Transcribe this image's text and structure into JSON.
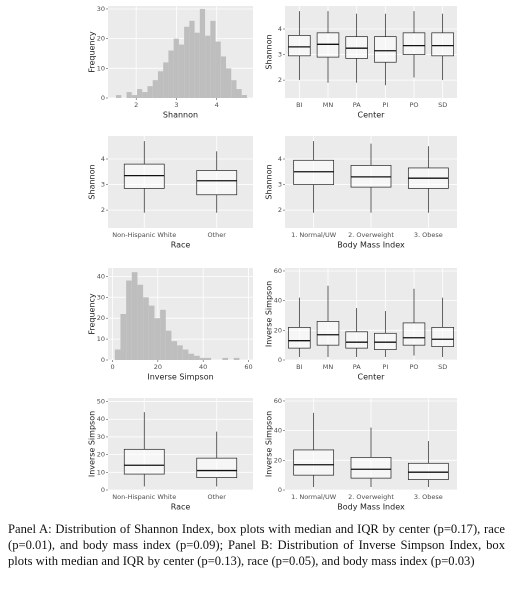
{
  "chart_data": [
    {
      "type": "histogram",
      "x_label": "Shannon",
      "y_label": "Frequency",
      "bins": [
        1.5,
        1.63,
        1.76,
        1.89,
        2.02,
        2.15,
        2.28,
        2.41,
        2.54,
        2.67,
        2.8,
        2.93,
        3.06,
        3.19,
        3.32,
        3.45,
        3.58,
        3.71,
        3.84,
        3.97,
        4.1,
        4.23,
        4.36,
        4.49,
        4.62,
        4.75
      ],
      "values": [
        1,
        0,
        2,
        1,
        3,
        2,
        4,
        6,
        9,
        12,
        16,
        20,
        18,
        24,
        26,
        22,
        30,
        21,
        26,
        19,
        14,
        10,
        6,
        3,
        1
      ],
      "color": "#bebebe",
      "xlim": [
        1.3,
        4.9
      ],
      "xticks": [
        2,
        3,
        4
      ],
      "ylim": [
        0,
        31
      ],
      "yticks": [
        0,
        10,
        20,
        30
      ],
      "grid": true
    },
    {
      "type": "boxplot",
      "x_label": "Center",
      "y_label": "Shannon",
      "categories": [
        "BI",
        "MN",
        "PA",
        "PI",
        "PO",
        "SD"
      ],
      "boxes": [
        {
          "low": 2.0,
          "q1": 2.95,
          "median": 3.3,
          "q3": 3.75,
          "high": 4.7
        },
        {
          "low": 1.9,
          "q1": 2.9,
          "median": 3.4,
          "q3": 3.85,
          "high": 4.7
        },
        {
          "low": 1.9,
          "q1": 2.85,
          "median": 3.25,
          "q3": 3.7,
          "high": 4.6
        },
        {
          "low": 1.8,
          "q1": 2.7,
          "median": 3.15,
          "q3": 3.7,
          "high": 4.6
        },
        {
          "low": 2.1,
          "q1": 3.0,
          "median": 3.35,
          "q3": 3.85,
          "high": 4.7
        },
        {
          "low": 2.0,
          "q1": 2.95,
          "median": 3.35,
          "q3": 3.85,
          "high": 4.6
        }
      ],
      "ylim": [
        1.3,
        4.9
      ],
      "yticks": [
        2,
        3,
        4
      ],
      "grid": true
    },
    {
      "type": "boxplot",
      "x_label": "Race",
      "y_label": "Shannon",
      "categories": [
        "Non-Hispanic White",
        "Other"
      ],
      "boxes": [
        {
          "low": 1.9,
          "q1": 2.85,
          "median": 3.35,
          "q3": 3.8,
          "high": 4.7
        },
        {
          "low": 1.9,
          "q1": 2.6,
          "median": 3.15,
          "q3": 3.55,
          "high": 4.3
        }
      ],
      "ylim": [
        1.3,
        4.9
      ],
      "yticks": [
        2,
        3,
        4
      ],
      "grid": true
    },
    {
      "type": "boxplot",
      "x_label": "Body Mass Index",
      "y_label": "Shannon",
      "categories": [
        "1. Normal/UW",
        "2. Overweight",
        "3. Obese"
      ],
      "boxes": [
        {
          "low": 1.9,
          "q1": 3.0,
          "median": 3.5,
          "q3": 3.95,
          "high": 4.7
        },
        {
          "low": 1.9,
          "q1": 2.9,
          "median": 3.3,
          "q3": 3.75,
          "high": 4.6
        },
        {
          "low": 1.9,
          "q1": 2.85,
          "median": 3.25,
          "q3": 3.65,
          "high": 4.5
        }
      ],
      "ylim": [
        1.3,
        4.9
      ],
      "yticks": [
        2,
        3,
        4
      ],
      "grid": true
    },
    {
      "type": "histogram",
      "x_label": "Inverse Simpson",
      "y_label": "Frequency",
      "bins": [
        1,
        3.5,
        6,
        8.5,
        11,
        13.5,
        16,
        18.5,
        21,
        23.5,
        26,
        28.5,
        31,
        33.5,
        36,
        38.5,
        41,
        43.5,
        46,
        48.5,
        51,
        53.5,
        56
      ],
      "values": [
        5,
        22,
        38,
        42,
        36,
        30,
        26,
        20,
        24,
        14,
        9,
        7,
        5,
        3,
        2,
        1,
        1,
        0,
        0,
        1,
        0,
        1
      ],
      "color": "#bebebe",
      "xlim": [
        -2,
        62
      ],
      "xticks": [
        0,
        20,
        40,
        60
      ],
      "ylim": [
        0,
        44
      ],
      "yticks": [
        0,
        10,
        20,
        30,
        40
      ],
      "grid": true
    },
    {
      "type": "boxplot",
      "x_label": "Center",
      "y_label": "Inverse Simpson",
      "categories": [
        "BI",
        "MN",
        "PA",
        "PI",
        "PO",
        "SD"
      ],
      "boxes": [
        {
          "low": 2,
          "q1": 8,
          "median": 13,
          "q3": 22,
          "high": 42
        },
        {
          "low": 2,
          "q1": 10,
          "median": 17,
          "q3": 26,
          "high": 50
        },
        {
          "low": 2,
          "q1": 8,
          "median": 12,
          "q3": 19,
          "high": 35
        },
        {
          "low": 2,
          "q1": 7,
          "median": 12,
          "q3": 18,
          "high": 33
        },
        {
          "low": 3,
          "q1": 10,
          "median": 15,
          "q3": 25,
          "high": 48
        },
        {
          "low": 2,
          "q1": 9,
          "median": 14,
          "q3": 22,
          "high": 42
        }
      ],
      "ylim": [
        0,
        62
      ],
      "yticks": [
        0,
        20,
        40,
        60
      ],
      "grid": true
    },
    {
      "type": "boxplot",
      "x_label": "Race",
      "y_label": "Inverse Simpson",
      "categories": [
        "Non-Hispanic White",
        "Other"
      ],
      "boxes": [
        {
          "low": 2,
          "q1": 9,
          "median": 14,
          "q3": 23,
          "high": 44
        },
        {
          "low": 2,
          "q1": 7,
          "median": 11,
          "q3": 18,
          "high": 33
        }
      ],
      "ylim": [
        0,
        52
      ],
      "yticks": [
        0,
        10,
        20,
        30,
        40,
        50
      ],
      "grid": true
    },
    {
      "type": "boxplot",
      "x_label": "Body Mass Index",
      "y_label": "Inverse Simpson",
      "categories": [
        "1. Normal/UW",
        "2. Overweight",
        "3. Obese"
      ],
      "boxes": [
        {
          "low": 2,
          "q1": 10,
          "median": 17,
          "q3": 27,
          "high": 52
        },
        {
          "low": 2,
          "q1": 8,
          "median": 14,
          "q3": 22,
          "high": 42
        },
        {
          "low": 2,
          "q1": 7,
          "median": 12,
          "q3": 18,
          "high": 33
        }
      ],
      "ylim": [
        0,
        62
      ],
      "yticks": [
        0,
        20,
        40,
        60
      ],
      "grid": true
    }
  ],
  "caption": "Panel A:  Distribution of Shannon Index, box plots with median and IQR by center (p=0.17),  race (p=0.01), and body mass index (p=0.09); Panel B: Distribution of Inverse Simpson Index, box plots with median and IQR by center (p=0.13), race (p=0.05), and body mass index (p=0.03)"
}
